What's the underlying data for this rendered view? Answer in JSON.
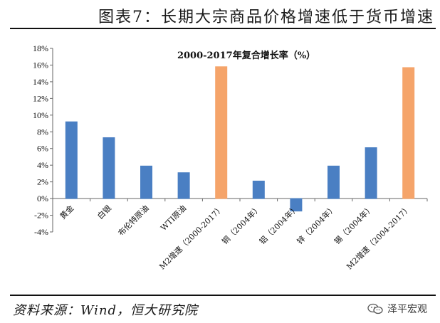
{
  "header": {
    "title": "图表7：长期大宗商品价格增速低于货币增速"
  },
  "footer": {
    "source": "资料来源：Wind，恒大研究院",
    "watermark": "泽平宏观"
  },
  "colors": {
    "blue": "#4a7fc3",
    "orange": "#f5a46a"
  },
  "chart_data": {
    "type": "bar",
    "title": "2000-2017年复合增长率（%）",
    "categories": [
      "黄金",
      "白银",
      "布伦特原油",
      "WTI原油",
      "M2增速（2000-2017）",
      "铜（2004年）",
      "铝（2004年）",
      "锌（2004年）",
      "锡（2004年）",
      "M2增速（2004-2017）"
    ],
    "values": [
      9.2,
      7.3,
      3.9,
      3.1,
      15.8,
      2.1,
      -1.5,
      3.9,
      6.1,
      15.7
    ],
    "bar_colors": [
      "blue",
      "blue",
      "blue",
      "blue",
      "orange",
      "blue",
      "blue",
      "blue",
      "blue",
      "orange"
    ],
    "ylim": [
      -4,
      18
    ],
    "ytick_step": 2,
    "ytick_labels": [
      "-4%",
      "-2%",
      "0%",
      "2%",
      "4%",
      "6%",
      "8%",
      "10%",
      "12%",
      "14%",
      "16%",
      "18%"
    ],
    "xlabel": "",
    "ylabel": "",
    "grid": false,
    "legend": "none"
  }
}
